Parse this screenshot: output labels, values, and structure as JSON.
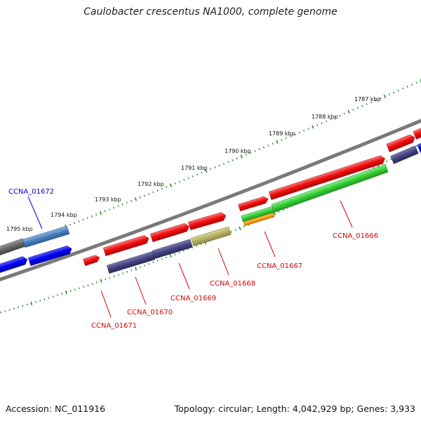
{
  "title": "Caulobacter crescentus NA1000, complete genome",
  "footer": {
    "accession": "Accession: NC_011916",
    "summary": "Topology: circular; Length: 4,042,929 bp; Genes: 3,933"
  },
  "colors": {
    "background": "#ffffff",
    "backbone": "#7a7a7a",
    "ruler": "#228b22",
    "cds": "#ee1111",
    "gene": "#43437f",
    "highlight_gene": "#0000ee",
    "highlight_cds": "#4a7fc0",
    "rna_green": "#33cc33",
    "rna_orange": "#ff9900",
    "olive": "#b5b062",
    "label_red": "#dd0000",
    "label_blue": "#0000cc"
  },
  "scale_labels": [
    "1787 kbp",
    "1788 kbp",
    "1789 kbp",
    "1790 kbp",
    "1791 kbp",
    "1792 kbp",
    "1793 kbp",
    "1794 kbp",
    "1795 kbp"
  ],
  "gene_labels": [
    "CCNA_01672",
    "CCNA_01671",
    "CCNA_01670",
    "CCNA_01669",
    "CCNA_01668",
    "CCNA_01667",
    "CCNA_01666"
  ]
}
